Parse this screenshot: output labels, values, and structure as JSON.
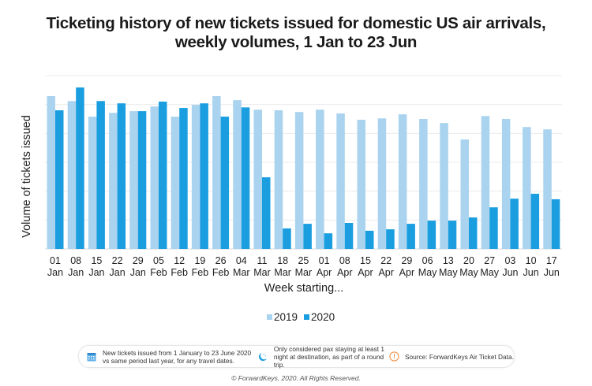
{
  "chart_data": {
    "type": "bar",
    "title": "Ticketing history of new tickets issued for domestic US air arrivals, weekly volumes, 1 Jan to 23 Jun",
    "title_lines": [
      "Ticketing history of new tickets issued for domestic US air arrivals,",
      "weekly volumes, 1 Jan to 23 Jun"
    ],
    "xlabel": "Week starting...",
    "ylabel": "Volume of tickets issued",
    "ylim": [
      0,
      6
    ],
    "y_tick_labels_shown": false,
    "grid": true,
    "legend_position": "bottom",
    "categories": [
      [
        "01",
        "Jan"
      ],
      [
        "08",
        "Jan"
      ],
      [
        "15",
        "Jan"
      ],
      [
        "22",
        "Jan"
      ],
      [
        "29",
        "Jan"
      ],
      [
        "05",
        "Feb"
      ],
      [
        "12",
        "Feb"
      ],
      [
        "19",
        "Feb"
      ],
      [
        "26",
        "Feb"
      ],
      [
        "04",
        "Mar"
      ],
      [
        "11",
        "Mar"
      ],
      [
        "18",
        "Mar"
      ],
      [
        "25",
        "Mar"
      ],
      [
        "01",
        "Apr"
      ],
      [
        "08",
        "Apr"
      ],
      [
        "15",
        "Apr"
      ],
      [
        "22",
        "Apr"
      ],
      [
        "29",
        "Apr"
      ],
      [
        "06",
        "May"
      ],
      [
        "13",
        "May"
      ],
      [
        "20",
        "May"
      ],
      [
        "27",
        "May"
      ],
      [
        "03",
        "Jun"
      ],
      [
        "10",
        "Jun"
      ],
      [
        "17",
        "Jun"
      ]
    ],
    "series": [
      {
        "name": "2019",
        "color": "#a9d3ef",
        "values": [
          5.29,
          5.12,
          4.58,
          4.71,
          4.77,
          4.93,
          4.58,
          4.99,
          5.29,
          5.15,
          4.82,
          4.8,
          4.74,
          4.82,
          4.69,
          4.47,
          4.52,
          4.66,
          4.5,
          4.36,
          3.79,
          4.6,
          4.5,
          4.22,
          4.14
        ]
      },
      {
        "name": "2020",
        "color": "#1a9ee0",
        "values": [
          4.8,
          5.59,
          5.12,
          5.04,
          4.77,
          5.1,
          4.88,
          5.04,
          4.58,
          4.9,
          2.48,
          0.71,
          0.87,
          0.54,
          0.9,
          0.63,
          0.68,
          0.87,
          0.98,
          0.98,
          1.09,
          1.44,
          1.74,
          1.91,
          1.72
        ]
      }
    ]
  },
  "notes": [
    {
      "icon": "calendar-icon",
      "line1": "New tickets issued from 1 January to 23 June 2020",
      "line2": "vs same period last year, for any travel dates."
    },
    {
      "icon": "moon-icon",
      "line1": "Only considered pax staying at least 1",
      "line2": "night at destination, as part of a round trip."
    },
    {
      "icon": "warning-icon",
      "line1": "Source: ForwardKeys Air Ticket Data.",
      "line2": ""
    }
  ],
  "copyright": "© ForwardKeys, 2020. All Rights Reserved."
}
